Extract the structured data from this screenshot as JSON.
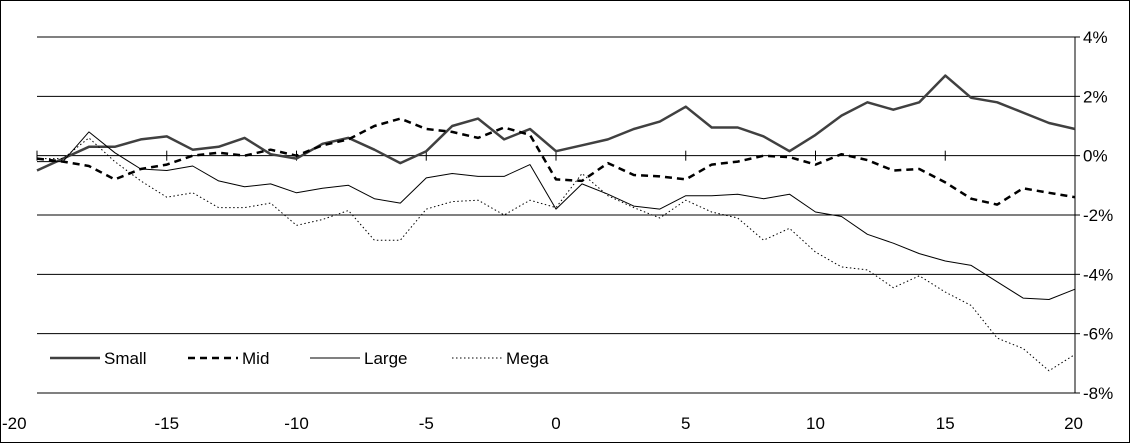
{
  "chart_data": {
    "type": "line",
    "title": "",
    "xlabel": "",
    "ylabel": "",
    "x": [
      -20,
      -19,
      -18,
      -17,
      -16,
      -15,
      -14,
      -13,
      -12,
      -11,
      -10,
      -9,
      -8,
      -7,
      -6,
      -5,
      -4,
      -3,
      -2,
      -1,
      0,
      1,
      2,
      3,
      4,
      5,
      6,
      7,
      8,
      9,
      10,
      11,
      12,
      13,
      14,
      15,
      16,
      17,
      18,
      19,
      20
    ],
    "xlim": [
      -20,
      20
    ],
    "ylim": [
      -8,
      4
    ],
    "x_ticks": [
      -20,
      -15,
      -10,
      -5,
      0,
      5,
      10,
      15,
      20
    ],
    "x_tick_labels": [
      "-20",
      "-15",
      "-10",
      "-5",
      "0",
      "5",
      "10",
      "15",
      "20"
    ],
    "y_ticks": [
      4,
      2,
      0,
      -2,
      -4,
      -6,
      -8
    ],
    "y_tick_labels": [
      "4%",
      "2%",
      "0%",
      "-2%",
      "-4%",
      "-6%",
      "-8%"
    ],
    "y_axis_position": "right",
    "grid": "horizontal",
    "legend_position": "bottom-left",
    "series": [
      {
        "name": "Small",
        "style": "thick-solid",
        "color": "#404040",
        "values": [
          -0.5,
          -0.1,
          0.3,
          0.3,
          0.55,
          0.65,
          0.2,
          0.3,
          0.6,
          0.05,
          -0.1,
          0.4,
          0.6,
          0.2,
          -0.25,
          0.15,
          1.0,
          1.25,
          0.55,
          0.9,
          0.15,
          0.35,
          0.55,
          0.9,
          1.15,
          1.65,
          0.95,
          0.95,
          0.65,
          0.15,
          0.7,
          1.35,
          1.8,
          1.55,
          1.8,
          2.7,
          1.95,
          1.8,
          1.45,
          1.1,
          0.9
        ]
      },
      {
        "name": "Mid",
        "style": "thick-dashed",
        "color": "#000000",
        "values": [
          -0.1,
          -0.2,
          -0.35,
          -0.8,
          -0.45,
          -0.3,
          0.0,
          0.1,
          0.0,
          0.2,
          0.0,
          0.35,
          0.55,
          1.0,
          1.25,
          0.9,
          0.8,
          0.6,
          0.95,
          0.7,
          -0.8,
          -0.85,
          -0.25,
          -0.65,
          -0.7,
          -0.8,
          -0.3,
          -0.2,
          0.0,
          -0.05,
          -0.3,
          0.05,
          -0.15,
          -0.5,
          -0.45,
          -0.9,
          -1.45,
          -1.65,
          -1.1,
          -1.25,
          -1.4
        ]
      },
      {
        "name": "Large",
        "style": "thin-solid",
        "color": "#000000",
        "values": [
          -0.2,
          -0.2,
          0.8,
          0.1,
          -0.45,
          -0.5,
          -0.35,
          -0.85,
          -1.05,
          -0.95,
          -1.25,
          -1.1,
          -1.0,
          -1.45,
          -1.6,
          -0.75,
          -0.6,
          -0.7,
          -0.7,
          -0.3,
          -1.8,
          -0.95,
          -1.3,
          -1.7,
          -1.8,
          -1.35,
          -1.35,
          -1.3,
          -1.45,
          -1.3,
          -1.9,
          -2.05,
          -2.65,
          -2.95,
          -3.3,
          -3.55,
          -3.7,
          -4.25,
          -4.8,
          -4.85,
          -4.5
        ]
      },
      {
        "name": "Mega",
        "style": "dotted",
        "color": "#000000",
        "values": [
          -0.1,
          -0.1,
          0.6,
          -0.2,
          -0.85,
          -1.4,
          -1.25,
          -1.75,
          -1.75,
          -1.6,
          -2.35,
          -2.15,
          -1.85,
          -2.85,
          -2.85,
          -1.8,
          -1.55,
          -1.5,
          -2.0,
          -1.5,
          -1.75,
          -0.6,
          -1.35,
          -1.75,
          -2.1,
          -1.5,
          -1.9,
          -2.1,
          -2.85,
          -2.45,
          -3.25,
          -3.75,
          -3.85,
          -4.45,
          -4.05,
          -4.6,
          -5.05,
          -6.15,
          -6.5,
          -7.25,
          -6.7
        ]
      }
    ]
  }
}
